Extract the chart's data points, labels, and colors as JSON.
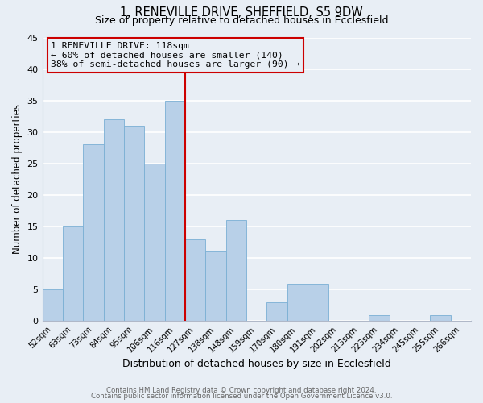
{
  "title": "1, RENEVILLE DRIVE, SHEFFIELD, S5 9DW",
  "subtitle": "Size of property relative to detached houses in Ecclesfield",
  "xlabel": "Distribution of detached houses by size in Ecclesfield",
  "ylabel": "Number of detached properties",
  "bar_labels": [
    "52sqm",
    "63sqm",
    "73sqm",
    "84sqm",
    "95sqm",
    "106sqm",
    "116sqm",
    "127sqm",
    "138sqm",
    "148sqm",
    "159sqm",
    "170sqm",
    "180sqm",
    "191sqm",
    "202sqm",
    "213sqm",
    "223sqm",
    "234sqm",
    "245sqm",
    "255sqm",
    "266sqm"
  ],
  "bar_values": [
    5,
    15,
    28,
    32,
    31,
    25,
    35,
    13,
    11,
    16,
    0,
    3,
    6,
    6,
    0,
    0,
    1,
    0,
    0,
    1,
    0
  ],
  "bar_color": "#b8d0e8",
  "bar_edge_color": "#7aafd4",
  "bg_color": "#e8eef5",
  "grid_color": "#ffffff",
  "vline_x": 6.5,
  "vline_color": "#cc0000",
  "annotation_title": "1 RENEVILLE DRIVE: 118sqm",
  "annotation_line1": "← 60% of detached houses are smaller (140)",
  "annotation_line2": "38% of semi-detached houses are larger (90) →",
  "annotation_box_color": "#cc0000",
  "ylim": [
    0,
    45
  ],
  "yticks": [
    0,
    5,
    10,
    15,
    20,
    25,
    30,
    35,
    40,
    45
  ],
  "footer1": "Contains HM Land Registry data © Crown copyright and database right 2024.",
  "footer2": "Contains public sector information licensed under the Open Government Licence v3.0."
}
